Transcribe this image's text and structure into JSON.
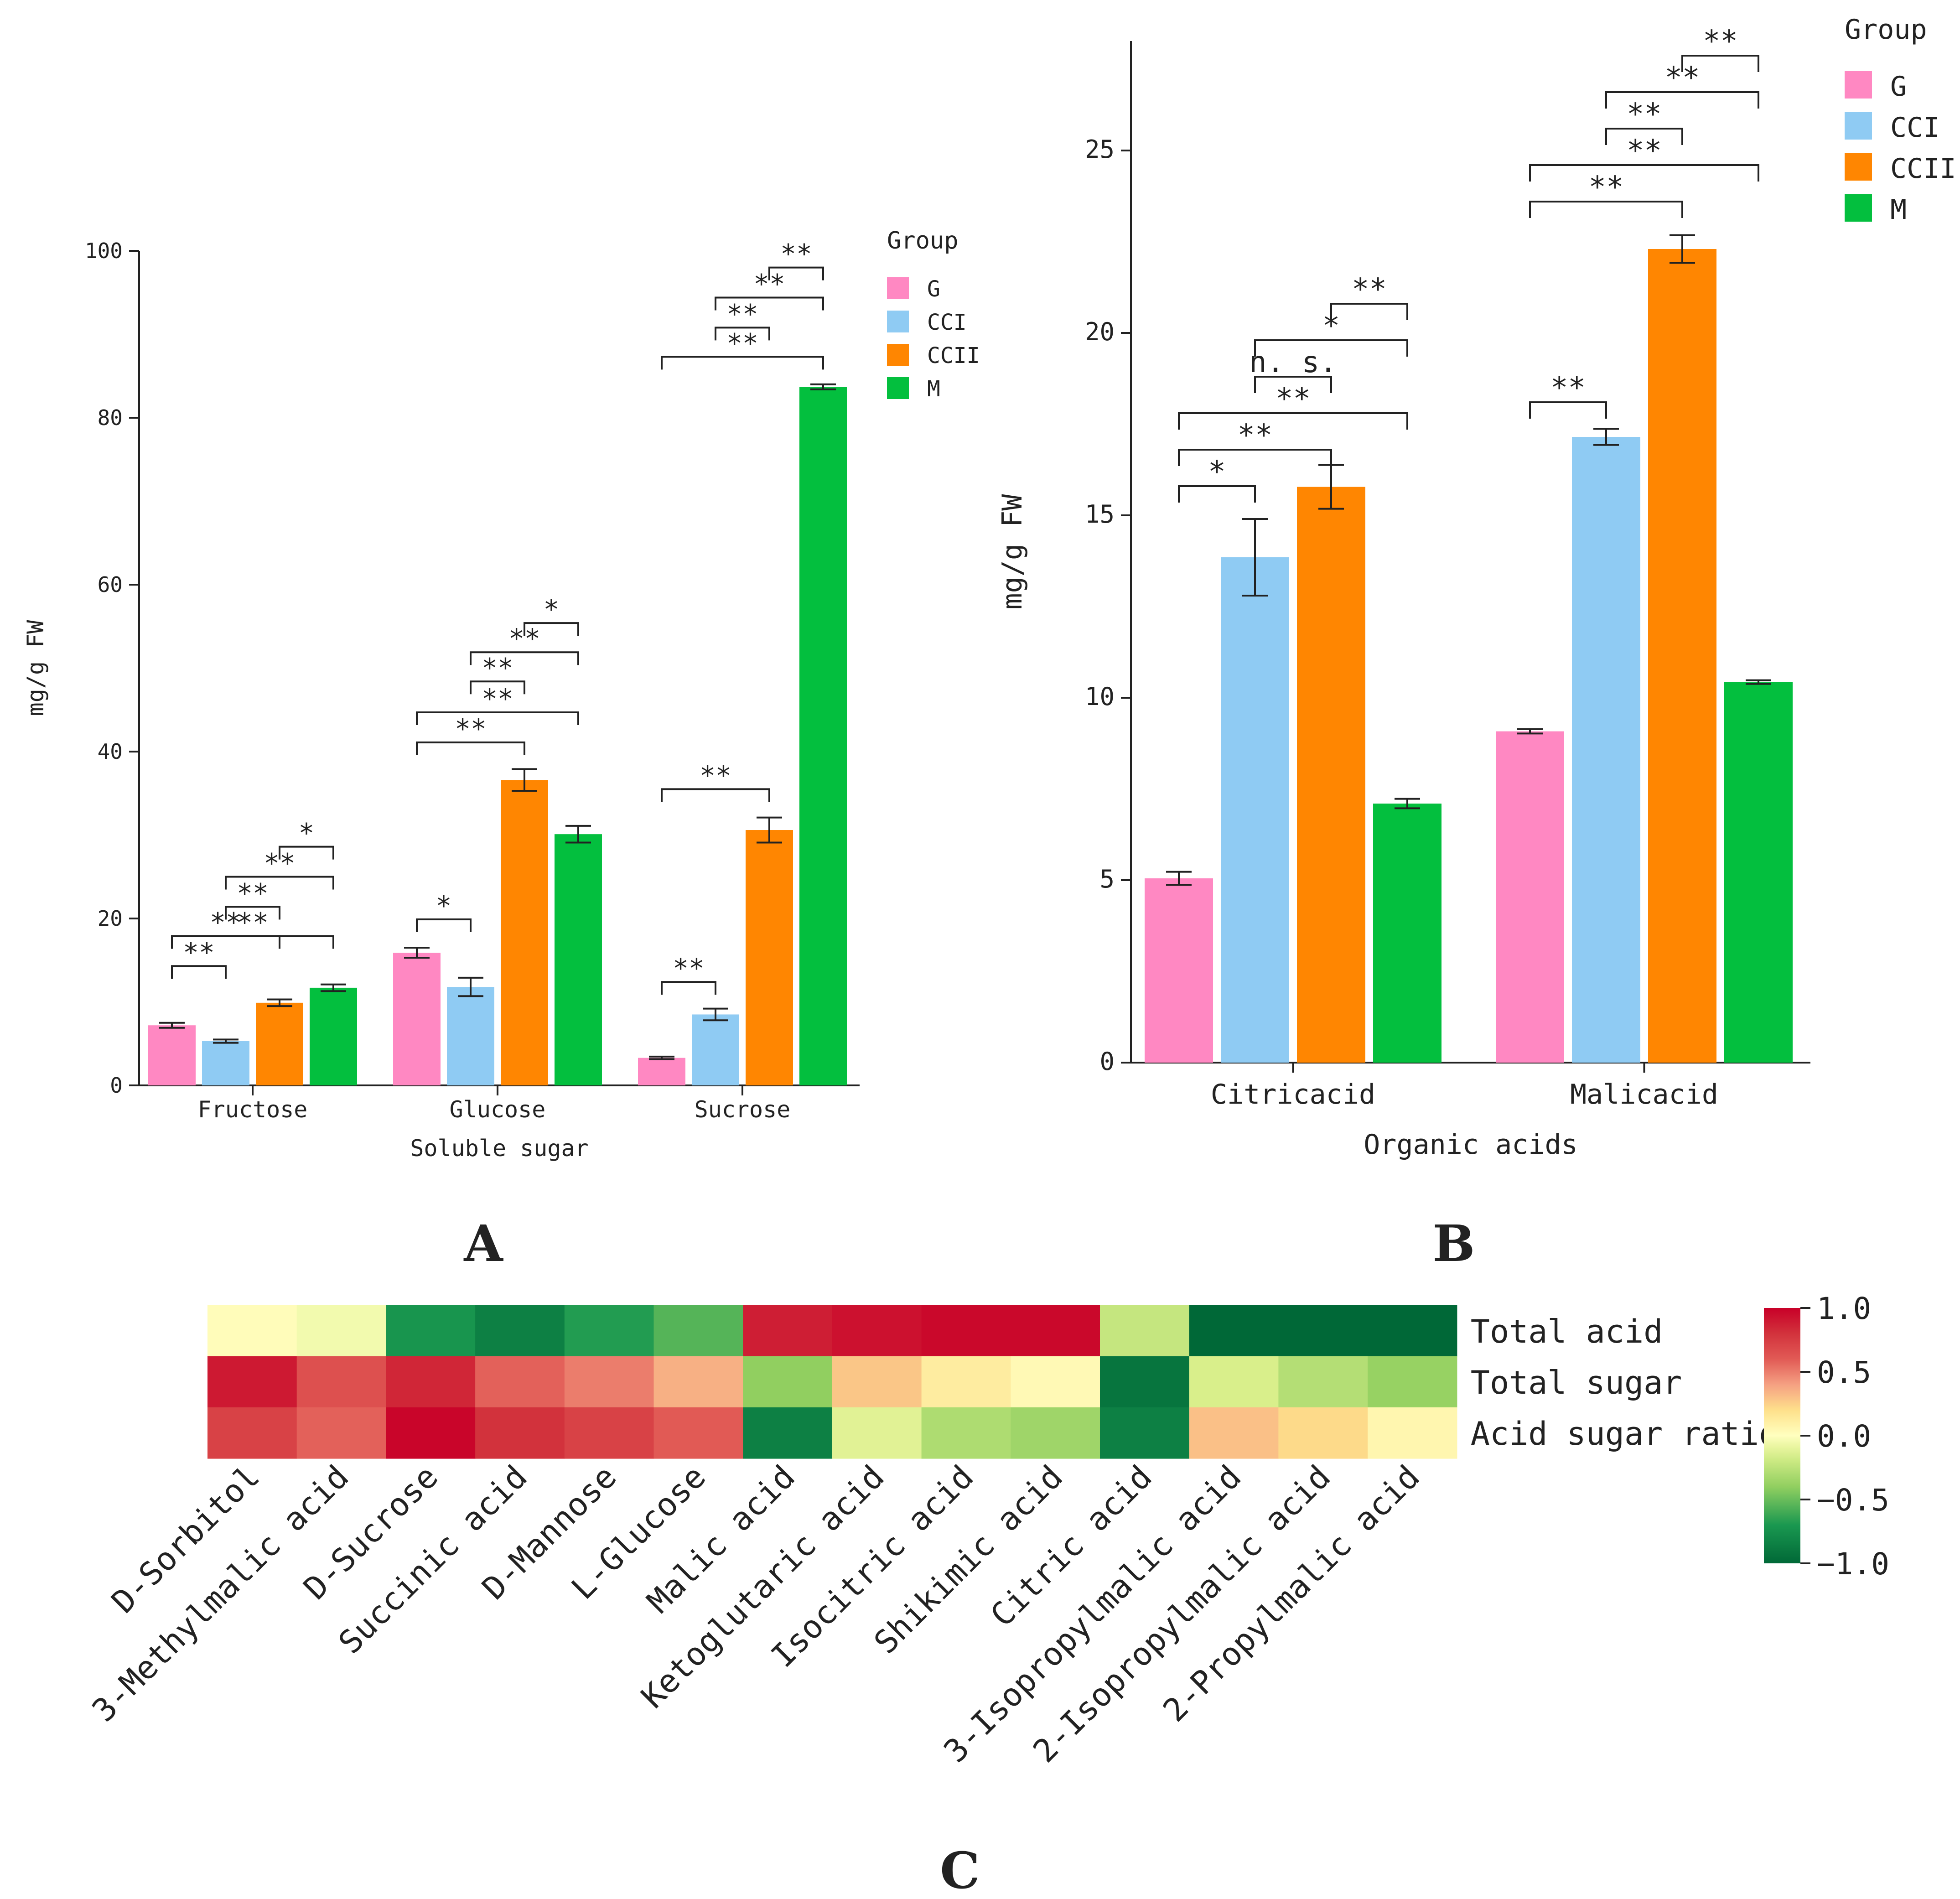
{
  "colors": {
    "G": "#ff88c2",
    "CCI": "#8fcbf3",
    "CCII": "#ff8601",
    "M": "#03bf3e"
  },
  "panel_labels": {
    "a": "A",
    "b": "B",
    "c": "C"
  },
  "chart_data": [
    {
      "id": "A",
      "type": "bar",
      "title": "",
      "xlabel": "Soluble sugar",
      "ylabel": "mg/g FW",
      "ylim": [
        0,
        100
      ],
      "yticks": [
        "0",
        "20",
        "40",
        "60",
        "80",
        "100"
      ],
      "categories": [
        "Fructose",
        "Glucose",
        "Sucrose"
      ],
      "legend_title": "Group",
      "legend_position": "top-right",
      "series": [
        {
          "name": "G",
          "values": [
            7.2,
            15.9,
            3.3
          ],
          "errors": [
            0.3,
            0.6,
            0.15
          ]
        },
        {
          "name": "CCI",
          "values": [
            5.3,
            11.8,
            8.5
          ],
          "errors": [
            0.2,
            1.1,
            0.7
          ]
        },
        {
          "name": "CCII",
          "values": [
            9.9,
            36.6,
            30.6
          ],
          "errors": [
            0.4,
            1.3,
            1.5
          ]
        },
        {
          "name": "M",
          "values": [
            11.7,
            30.1,
            83.7
          ],
          "errors": [
            0.4,
            1.0,
            0.3
          ]
        }
      ],
      "significance": [
        {
          "category": 0,
          "from": 0,
          "to": 1,
          "label": "**",
          "y": 14.3
        },
        {
          "category": 0,
          "from": 0,
          "to": 2,
          "label": "**",
          "y": 17.9
        },
        {
          "category": 0,
          "from": 1,
          "to": 2,
          "label": "**",
          "y": 21.4
        },
        {
          "category": 0,
          "from": 1,
          "to": 3,
          "label": "**",
          "y": 25.0
        },
        {
          "category": 0,
          "from": 2,
          "to": 3,
          "label": "*",
          "y": 28.6
        },
        {
          "category": 0,
          "from": 0,
          "to": 3,
          "label": "**",
          "y": 17.9,
          "hidden_note": ""
        },
        {
          "category": 1,
          "from": 0,
          "to": 1,
          "label": "*",
          "y": 19.9
        },
        {
          "category": 1,
          "from": 0,
          "to": 2,
          "label": "**",
          "y": 41.1
        },
        {
          "category": 1,
          "from": 1,
          "to": 2,
          "label": "**",
          "y": 48.4
        },
        {
          "category": 1,
          "from": 1,
          "to": 3,
          "label": "**",
          "y": 51.9
        },
        {
          "category": 1,
          "from": 2,
          "to": 3,
          "label": "*",
          "y": 55.4
        },
        {
          "category": 1,
          "from": 0,
          "to": 3,
          "label": "**",
          "y": 44.7
        },
        {
          "category": 2,
          "from": 0,
          "to": 1,
          "label": "**",
          "y": 12.4
        },
        {
          "category": 2,
          "from": 0,
          "to": 2,
          "label": "**",
          "y": 35.5
        },
        {
          "category": 2,
          "from": 0,
          "to": 3,
          "label": "**",
          "y": 87.3
        },
        {
          "category": 2,
          "from": 1,
          "to": 2,
          "label": "**",
          "y": 90.8
        },
        {
          "category": 2,
          "from": 1,
          "to": 3,
          "label": "**",
          "y": 94.4
        },
        {
          "category": 2,
          "from": 2,
          "to": 3,
          "label": "**",
          "y": 98.0
        }
      ]
    },
    {
      "id": "B",
      "type": "bar",
      "title": "",
      "xlabel": "Organic acids",
      "ylabel": "mg/g FW",
      "ylim": [
        0,
        28
      ],
      "yticks": [
        "0",
        "5",
        "10",
        "15",
        "20",
        "25"
      ],
      "categories": [
        "Citricacid",
        "Malicacid"
      ],
      "legend_title": "Group",
      "legend_position": "top-right",
      "series": [
        {
          "name": "G",
          "values": [
            5.05,
            9.08
          ],
          "errors": [
            0.18,
            0.06
          ]
        },
        {
          "name": "CCI",
          "values": [
            13.85,
            17.15
          ],
          "errors": [
            1.05,
            0.22
          ]
        },
        {
          "name": "CCII",
          "values": [
            15.78,
            22.3
          ],
          "errors": [
            0.6,
            0.38
          ]
        },
        {
          "name": "M",
          "values": [
            7.1,
            10.43
          ],
          "errors": [
            0.13,
            0.05
          ]
        }
      ],
      "significance": [
        {
          "category": 0,
          "from": 0,
          "to": 1,
          "label": "*",
          "y": 15.8
        },
        {
          "category": 0,
          "from": 0,
          "to": 2,
          "label": "**",
          "y": 16.8
        },
        {
          "category": 0,
          "from": 0,
          "to": 3,
          "label": "**",
          "y": 17.8
        },
        {
          "category": 0,
          "from": 1,
          "to": 2,
          "label": "n. s.",
          "y": 18.8
        },
        {
          "category": 0,
          "from": 1,
          "to": 3,
          "label": "*",
          "y": 19.8
        },
        {
          "category": 0,
          "from": 2,
          "to": 3,
          "label": "**",
          "y": 20.8
        },
        {
          "category": 1,
          "from": 0,
          "to": 1,
          "label": "**",
          "y": 18.1
        },
        {
          "category": 1,
          "from": 0,
          "to": 2,
          "label": "**",
          "y": 23.6
        },
        {
          "category": 1,
          "from": 0,
          "to": 3,
          "label": "**",
          "y": 24.6
        },
        {
          "category": 1,
          "from": 1,
          "to": 2,
          "label": "**",
          "y": 25.6
        },
        {
          "category": 1,
          "from": 1,
          "to": 3,
          "label": "**",
          "y": 26.6
        },
        {
          "category": 1,
          "from": 2,
          "to": 3,
          "label": "**",
          "y": 27.6
        }
      ]
    },
    {
      "id": "C",
      "type": "heatmap",
      "title": "",
      "rows": [
        "Total acid",
        "Total sugar",
        "Acid sugar ratio"
      ],
      "columns": [
        "D-Sorbitol",
        "3-Methylmalic acid",
        "D-Sucrose",
        "Succinic acid",
        "D-Mannose",
        "L-Glucose",
        "Malic acid",
        "Ketoglutaric acid",
        "Isocitric acid",
        "Shikimic acid",
        "Citric acid",
        "3-Isopropylmalic acid",
        "2-Isopropylmalic acid",
        "2-Propylmalic acid"
      ],
      "values": [
        [
          0.02,
          -0.05,
          -0.72,
          -0.85,
          -0.68,
          -0.55,
          0.88,
          0.93,
          0.97,
          0.97,
          -0.22,
          -1.0,
          -1.0,
          -1.0
        ],
        [
          0.9,
          0.65,
          0.85,
          0.58,
          0.5,
          0.35,
          -0.4,
          0.28,
          0.12,
          0.04,
          -0.92,
          -0.15,
          -0.28,
          -0.38
        ],
        [
          0.72,
          0.58,
          0.98,
          0.8,
          0.72,
          0.6,
          -0.85,
          -0.12,
          -0.3,
          -0.35,
          -0.85,
          0.3,
          0.22,
          0.06
        ]
      ],
      "colorbar": {
        "ticks": [
          "1.0",
          "0.5",
          "0.0",
          "−0.5",
          "−1.0"
        ],
        "range": [
          -1,
          1
        ]
      }
    }
  ]
}
